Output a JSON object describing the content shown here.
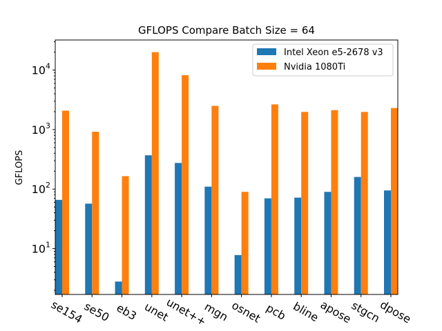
{
  "chart_data": {
    "type": "bar",
    "title": "GFLOPS Compare Batch Size = 64",
    "xlabel": "",
    "ylabel": "GFLOPS",
    "yscale": "log",
    "ylim": [
      1.7,
      32000
    ],
    "y_ticks": [
      {
        "value": 10,
        "base": "10",
        "exp": "1"
      },
      {
        "value": 100,
        "base": "10",
        "exp": "2"
      },
      {
        "value": 1000,
        "base": "10",
        "exp": "3"
      },
      {
        "value": 10000,
        "base": "10",
        "exp": "4"
      }
    ],
    "categories": [
      "se154",
      "se50",
      "eb3",
      "unet",
      "unet++",
      "mgn",
      "osnet",
      "pcb",
      "bline",
      "apose",
      "stgcn",
      "dpose"
    ],
    "series": [
      {
        "name": "Intel Xeon e5-2678 v3",
        "color": "#1f77b4",
        "values": [
          66,
          57,
          2.8,
          370,
          275,
          110,
          7.8,
          70,
          72,
          90,
          160,
          95
        ]
      },
      {
        "name": "Nvidia 1080Ti",
        "color": "#ff7f0e",
        "values": [
          2080,
          920,
          165,
          20000,
          8200,
          2500,
          90,
          2650,
          1980,
          2120,
          1980,
          2300
        ]
      }
    ],
    "legend_position": "top-right",
    "grid": false
  }
}
